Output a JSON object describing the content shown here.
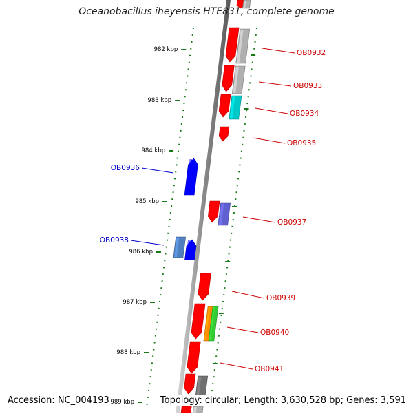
{
  "title": "Oceanobacillus iheyensis HTE831, complete genome",
  "footer": {
    "accession": "Accession: NC_004193",
    "summary": "Topology: circular; Length: 3,630,528 bp; Genes: 3,591"
  },
  "colors": {
    "forward_gene": "#ff0000",
    "reverse_gene": "#0000ff",
    "cds_grey": "#b0b0b0",
    "cds_cyan": "#00c8c8",
    "cds_purple": "#6060d0",
    "cds_steel": "#4f7fbf",
    "cds_orange": "#ff8c00",
    "cds_green": "#33cc33",
    "cds_dark": "#707070",
    "tick": "#1a7a1a",
    "forward_label": "#cc0000",
    "reverse_label": "#0000cc"
  },
  "scale": {
    "ticks": [
      "982 kbp",
      "983 kbp",
      "984 kbp",
      "985 kbp",
      "986 kbp",
      "987 kbp",
      "988 kbp",
      "989 kbp"
    ]
  },
  "labels": {
    "forward": [
      "OB0932",
      "OB0933",
      "OB0934",
      "OB0935",
      "OB0937",
      "OB0939",
      "OB0940",
      "OB0941"
    ],
    "reverse": [
      "OB0936",
      "OB0938"
    ]
  }
}
